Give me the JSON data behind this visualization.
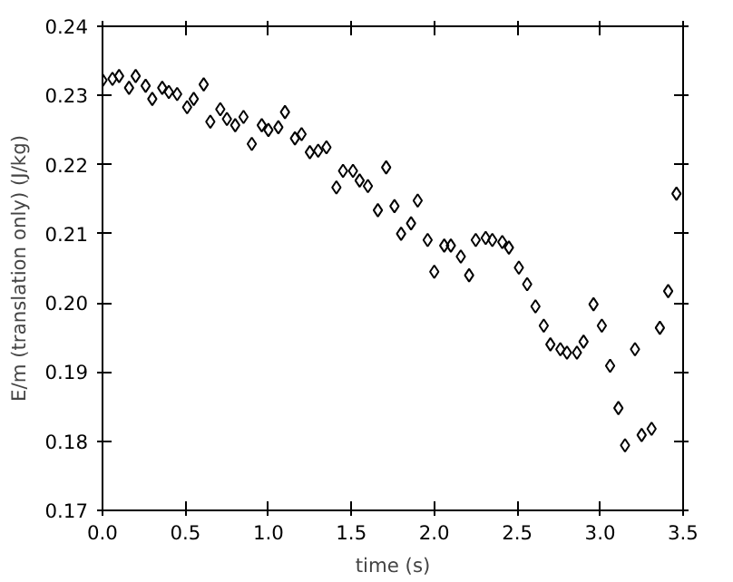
{
  "chart_data": {
    "type": "scatter",
    "xlabel": "time (s)",
    "ylabel": "E/m (translation only) (J/kg)",
    "marker": "diamond",
    "grid": false,
    "xlim": [
      0,
      3.5
    ],
    "ylim": [
      0.17,
      0.24
    ],
    "xticks": [
      {
        "value": 0,
        "label": "0.0"
      },
      0.5,
      {
        "value": 1,
        "label": "1.0"
      },
      1.5,
      {
        "value": 2,
        "label": "2.0"
      },
      2.5,
      {
        "value": 3,
        "label": "3.0"
      },
      3.5
    ],
    "yticks": [
      0.17,
      0.18,
      0.19,
      {
        "value": 0.2,
        "label": "0.20"
      },
      0.21,
      0.22,
      0.23,
      0.24
    ],
    "series": [
      {
        "color": "#000000",
        "x": [
          0,
          0.06,
          0.1,
          0.16,
          0.2,
          0.26,
          0.3,
          0.36,
          0.4,
          0.45,
          0.51,
          0.55,
          0.61,
          0.65,
          0.71,
          0.75,
          0.8,
          0.85,
          0.9,
          0.96,
          1.0,
          1.06,
          1.1,
          1.16,
          1.2,
          1.25,
          1.3,
          1.35,
          1.41,
          1.45,
          1.51,
          1.55,
          1.6,
          1.66,
          1.71,
          1.76,
          1.8,
          1.86,
          1.9,
          1.96,
          2.0,
          2.06,
          2.1,
          2.16,
          2.21,
          2.25,
          2.31,
          2.35,
          2.41,
          2.45,
          2.51,
          2.56,
          2.61,
          2.66,
          2.7,
          2.76,
          2.8,
          2.86,
          2.9,
          2.96,
          3.01,
          3.06,
          3.11,
          3.15,
          3.21,
          3.25,
          3.31,
          3.36,
          3.41,
          3.46
        ],
        "values": [
          0.2322,
          0.2324,
          0.2328,
          0.2311,
          0.2328,
          0.2314,
          0.2295,
          0.2311,
          0.2305,
          0.2302,
          0.2283,
          0.2295,
          0.2316,
          0.2262,
          0.228,
          0.2266,
          0.2257,
          0.2269,
          0.223,
          0.2257,
          0.225,
          0.2254,
          0.2276,
          0.2238,
          0.2244,
          0.2218,
          0.222,
          0.2225,
          0.2167,
          0.2191,
          0.2191,
          0.2177,
          0.2169,
          0.2134,
          0.2196,
          0.214,
          0.21,
          0.2115,
          0.2148,
          0.2091,
          0.2045,
          0.2083,
          0.2083,
          0.2067,
          0.204,
          0.2091,
          0.2094,
          0.2091,
          0.2088,
          0.208,
          0.2051,
          0.2027,
          0.1995,
          0.1967,
          0.194,
          0.1933,
          0.1928,
          0.1928,
          0.1944,
          0.1998,
          0.1967,
          0.1909,
          0.1848,
          0.1794,
          0.1933,
          0.1809,
          0.1818,
          0.1964,
          0.2017,
          0.2158
        ]
      }
    ]
  }
}
